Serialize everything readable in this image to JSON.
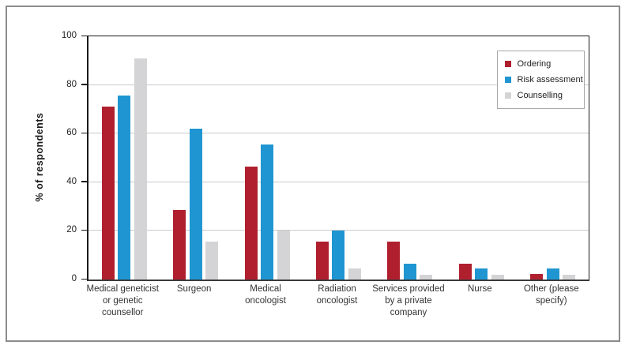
{
  "figure": {
    "ylabel": "% of respondents"
  },
  "colors": {
    "ordering": "#b01f2e",
    "risk_assessment": "#1f96d2",
    "counselling": "#d4d4d6",
    "gridline": "#cacaca",
    "axis": "#1a1a1a",
    "outer_border": "#8c8c8c",
    "legend_border": "#a8a8a8",
    "text": "#333333"
  },
  "chart_data": {
    "type": "bar",
    "title": "",
    "xlabel": "",
    "ylabel": "% of respondents",
    "ylim": [
      0,
      100
    ],
    "yticks": [
      0,
      20,
      40,
      60,
      80,
      100
    ],
    "grid": "horizontal",
    "legend_position": "top-right-inside",
    "categories": [
      "Medical geneticist\nor genetic\ncounsellor",
      "Surgeon",
      "Medical\noncologist",
      "Radiation\noncologist",
      "Services provided\nby a private\ncompany",
      "Nurse",
      "Other (please\nspecify)"
    ],
    "series": [
      {
        "name": "Ordering",
        "color": "#b01f2e",
        "values": [
          71,
          28.5,
          46.5,
          15.5,
          15.5,
          6.5,
          2.2
        ]
      },
      {
        "name": "Risk assessment",
        "color": "#1f96d2",
        "values": [
          75.5,
          62,
          55.5,
          20,
          6.5,
          4.5,
          4.4
        ]
      },
      {
        "name": "Counselling",
        "color": "#d4d4d6",
        "values": [
          91,
          15.5,
          20,
          4.5,
          2,
          2,
          2
        ]
      }
    ]
  }
}
